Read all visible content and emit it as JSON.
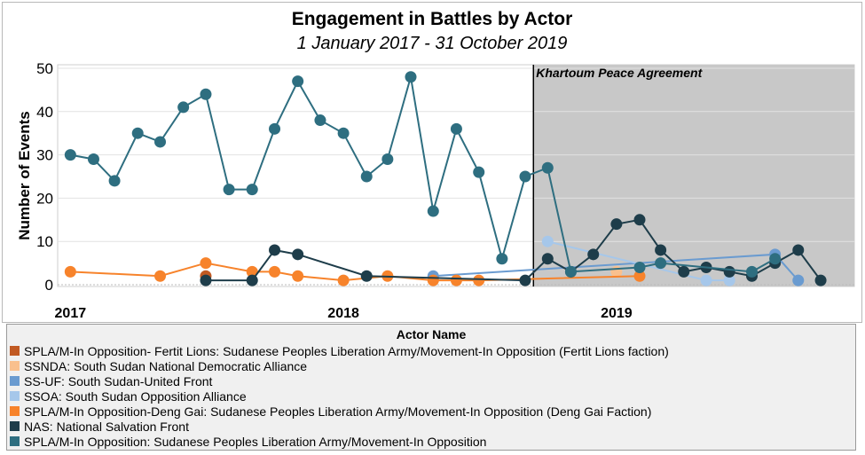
{
  "title": "Engagement in Battles by Actor",
  "subtitle": "1 January 2017 - 31 October 2019",
  "chart_data": {
    "type": "line",
    "ylabel": "Number of Events",
    "xlabel": "",
    "x_ticks": [
      "2017",
      "2018",
      "2019"
    ],
    "y_ticks": [
      0,
      10,
      20,
      30,
      40,
      50
    ],
    "ylim": [
      0,
      50
    ],
    "xlim": [
      "2016-12-15",
      "2019-11-15"
    ],
    "grid": true,
    "annotation": {
      "label": "Khartoum Peace Agreement",
      "date": "2018-09-12",
      "shaded_until": "2019-11-15"
    },
    "series": [
      {
        "name": "SPLA/M-In Opposition- Fertit Lions: Sudanese Peoples Liberation Army/Movement-In Opposition (Fertit Lions faction)",
        "color": "#c15a23",
        "points": [
          [
            "2017-07-01",
            2
          ]
        ]
      },
      {
        "name": "SSNDA: South Sudan National Democratic Alliance",
        "color": "#f9c08e",
        "points": [
          [
            "2019-01-01",
            3
          ]
        ]
      },
      {
        "name": "SS-UF: South Sudan-United Front",
        "color": "#6a9bd0",
        "points": [
          [
            "2018-05-01",
            2
          ],
          [
            "2019-08-01",
            7
          ],
          [
            "2019-09-01",
            1
          ]
        ]
      },
      {
        "name": "SSOA: South Sudan Opposition Alliance",
        "color": "#a6c7ea",
        "points": [
          [
            "2018-10-01",
            10
          ],
          [
            "2019-05-01",
            1
          ],
          [
            "2019-06-01",
            1
          ]
        ]
      },
      {
        "name": "SPLA/M-In Opposition-Deng Gai: Sudanese Peoples Liberation Army/Movement-In Opposition (Deng Gai Faction)",
        "color": "#f7832b",
        "points": [
          [
            "2017-01-01",
            3
          ],
          [
            "2017-05-01",
            2
          ],
          [
            "2017-07-01",
            5
          ],
          [
            "2017-09-01",
            3
          ],
          [
            "2017-10-01",
            3
          ],
          [
            "2017-11-01",
            2
          ],
          [
            "2018-01-01",
            1
          ],
          [
            "2018-03-01",
            2
          ],
          [
            "2018-05-01",
            1
          ],
          [
            "2018-06-01",
            1
          ],
          [
            "2018-07-01",
            1
          ],
          [
            "2019-02-01",
            2
          ]
        ]
      },
      {
        "name": "NAS: National Salvation Front",
        "color": "#1e3d4a",
        "points": [
          [
            "2017-07-01",
            1
          ],
          [
            "2017-09-01",
            1
          ],
          [
            "2017-10-01",
            8
          ],
          [
            "2017-11-01",
            7
          ],
          [
            "2018-02-01",
            2
          ],
          [
            "2018-09-01",
            1
          ],
          [
            "2018-10-01",
            6
          ],
          [
            "2018-11-01",
            3
          ],
          [
            "2018-12-01",
            7
          ],
          [
            "2019-01-01",
            14
          ],
          [
            "2019-02-01",
            15
          ],
          [
            "2019-03-01",
            8
          ],
          [
            "2019-04-01",
            3
          ],
          [
            "2019-05-01",
            4
          ],
          [
            "2019-06-01",
            3
          ],
          [
            "2019-07-01",
            2
          ],
          [
            "2019-08-01",
            5
          ],
          [
            "2019-09-01",
            8
          ],
          [
            "2019-10-01",
            1
          ]
        ]
      },
      {
        "name": "SPLA/M-In Opposition: Sudanese Peoples Liberation Army/Movement-In Opposition",
        "color": "#2e6e80",
        "points": [
          [
            "2017-01-01",
            30
          ],
          [
            "2017-02-01",
            29
          ],
          [
            "2017-03-01",
            24
          ],
          [
            "2017-04-01",
            35
          ],
          [
            "2017-05-01",
            33
          ],
          [
            "2017-06-01",
            41
          ],
          [
            "2017-07-01",
            44
          ],
          [
            "2017-08-01",
            22
          ],
          [
            "2017-09-01",
            22
          ],
          [
            "2017-10-01",
            36
          ],
          [
            "2017-11-01",
            47
          ],
          [
            "2017-12-01",
            38
          ],
          [
            "2018-01-01",
            35
          ],
          [
            "2018-02-01",
            25
          ],
          [
            "2018-03-01",
            29
          ],
          [
            "2018-04-01",
            48
          ],
          [
            "2018-05-01",
            17
          ],
          [
            "2018-06-01",
            36
          ],
          [
            "2018-07-01",
            26
          ],
          [
            "2018-08-01",
            6
          ],
          [
            "2018-09-01",
            25
          ],
          [
            "2018-10-01",
            27
          ],
          [
            "2018-11-01",
            3
          ],
          [
            "2019-02-01",
            4
          ],
          [
            "2019-03-01",
            5
          ],
          [
            "2019-07-01",
            3
          ],
          [
            "2019-08-01",
            6
          ]
        ]
      }
    ]
  },
  "legend": {
    "title": "Actor Name"
  }
}
